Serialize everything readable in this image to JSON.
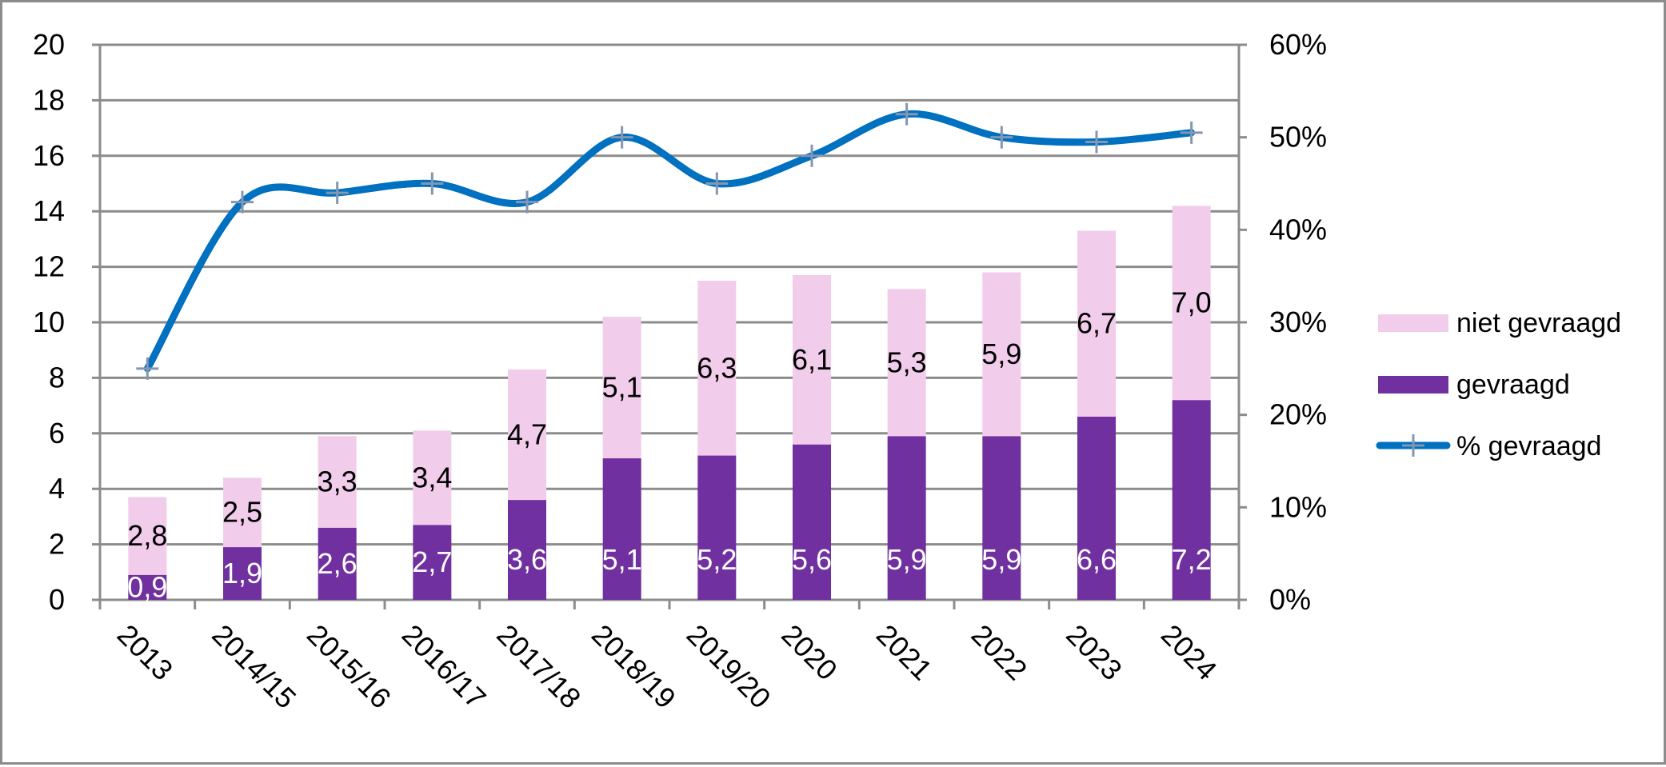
{
  "chart_data": {
    "type": "bar",
    "stacked": true,
    "categories": [
      "2013",
      "2014/15",
      "2015/16",
      "2016/17",
      "2017/18",
      "2018/19",
      "2019/20",
      "2020",
      "2021",
      "2022",
      "2023",
      "2024"
    ],
    "series": [
      {
        "name": "gevraagd",
        "type": "bar",
        "axis": "left",
        "color": "#7030a0",
        "values": [
          0.9,
          1.9,
          2.6,
          2.7,
          3.6,
          5.1,
          5.2,
          5.6,
          5.9,
          5.9,
          6.6,
          7.2
        ],
        "labels": [
          "0,9",
          "1,9",
          "2,6",
          "2,7",
          "3,6",
          "5,1",
          "5,2",
          "5,6",
          "5,9",
          "5,9",
          "6,6",
          "7,2"
        ]
      },
      {
        "name": "niet gevraagd",
        "type": "bar",
        "axis": "left",
        "color": "#f2cceb",
        "values": [
          2.8,
          2.5,
          3.3,
          3.4,
          4.7,
          5.1,
          6.3,
          6.1,
          5.3,
          5.9,
          6.7,
          7.0
        ],
        "labels": [
          "2,8",
          "2,5",
          "3,3",
          "3,4",
          "4,7",
          "5,1",
          "6,3",
          "6,1",
          "5,3",
          "5,9",
          "6,7",
          "7,0"
        ]
      },
      {
        "name": "% gevraagd",
        "type": "line",
        "axis": "right",
        "color": "#0070c0",
        "marker_color": "#8496b0",
        "values": [
          25,
          43,
          44,
          45,
          43,
          50,
          45,
          48,
          52.5,
          50,
          49.5,
          50.5
        ]
      }
    ],
    "y_left": {
      "lim": [
        0,
        20
      ],
      "ticks": [
        0,
        2,
        4,
        6,
        8,
        10,
        12,
        14,
        16,
        18,
        20
      ],
      "tick_labels": [
        "0",
        "2",
        "4",
        "6",
        "8",
        "10",
        "12",
        "14",
        "16",
        "18",
        "20"
      ]
    },
    "y_right": {
      "lim": [
        0,
        60
      ],
      "ticks": [
        0,
        10,
        20,
        30,
        40,
        50,
        60
      ],
      "tick_labels": [
        "0%",
        "10%",
        "20%",
        "30%",
        "40%",
        "50%",
        "60%"
      ]
    },
    "grid": true,
    "legend_position": "right",
    "legend": [
      {
        "label": "niet gevraagd",
        "kind": "box",
        "color": "#f2cceb"
      },
      {
        "label": "gevraagd",
        "kind": "box",
        "color": "#7030a0"
      },
      {
        "label": "% gevraagd",
        "kind": "line",
        "color": "#0070c0"
      }
    ]
  }
}
